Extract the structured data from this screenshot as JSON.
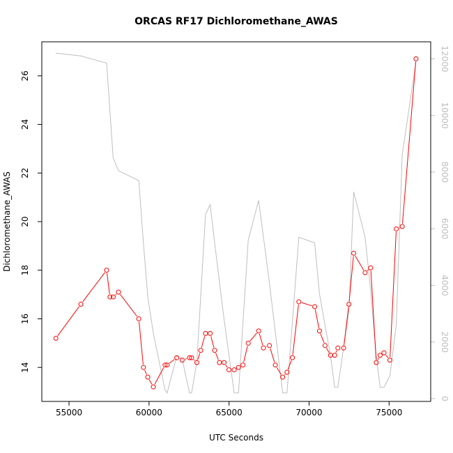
{
  "chart_data": {
    "type": "line",
    "title": "ORCAS RF17 Dichloromethane_AWAS",
    "xlabel": "UTC Seconds",
    "ylabel": "Dichloromethane_AWAS",
    "xlim": [
      53300,
      77600
    ],
    "ylim": [
      12.6,
      27.4
    ],
    "y2lim": [
      -100,
      12600
    ],
    "xticks": [
      55000,
      60000,
      65000,
      70000,
      75000
    ],
    "yticks": [
      14,
      16,
      18,
      20,
      22,
      24,
      26
    ],
    "y2ticks": [
      0,
      2000,
      4000,
      6000,
      8000,
      10000,
      12000
    ],
    "grid": false,
    "series": [
      {
        "role": "primary",
        "color": "#ff0000",
        "marker": "open-circle",
        "x": [
          54180,
          55740,
          57350,
          57560,
          57760,
          58090,
          59360,
          59650,
          59920,
          60270,
          61000,
          61130,
          61730,
          62070,
          62530,
          62660,
          62990,
          63230,
          63530,
          63820,
          64100,
          64400,
          64690,
          64990,
          65320,
          65590,
          65870,
          66200,
          66850,
          67150,
          67520,
          67890,
          68350,
          68620,
          68960,
          69360,
          70350,
          70650,
          71000,
          71340,
          71600,
          71800,
          72160,
          72490,
          72790,
          73500,
          73850,
          74200,
          74440,
          74680,
          75050,
          75450,
          75820,
          76680
        ],
        "values": [
          15.2,
          16.6,
          18.0,
          16.9,
          16.9,
          17.1,
          16.0,
          14.0,
          13.6,
          13.2,
          14.1,
          14.1,
          14.4,
          14.3,
          14.4,
          14.4,
          14.2,
          14.7,
          15.4,
          15.4,
          14.7,
          14.2,
          14.2,
          13.9,
          13.9,
          14.0,
          14.1,
          15.0,
          15.5,
          14.8,
          14.9,
          14.1,
          13.6,
          13.8,
          14.4,
          16.7,
          16.5,
          15.5,
          14.9,
          14.5,
          14.5,
          14.8,
          14.8,
          16.6,
          18.7,
          17.9,
          18.1,
          14.2,
          14.5,
          14.6,
          14.3,
          19.7,
          19.8,
          26.7
        ]
      },
      {
        "role": "secondary",
        "color": "#bebebe",
        "x": [
          54180,
          55740,
          57350,
          57760,
          58090,
          59360,
          59650,
          59920,
          60270,
          61000,
          61130,
          61730,
          62070,
          62530,
          62660,
          62990,
          63530,
          63820,
          64100,
          64690,
          65320,
          65590,
          66200,
          66850,
          67520,
          68350,
          68620,
          69360,
          70350,
          70650,
          71340,
          71600,
          71800,
          72490,
          72790,
          73500,
          73850,
          74200,
          74440,
          74680,
          75050,
          75450,
          75820,
          76680
        ],
        "values": [
          12200,
          12100,
          11850,
          8500,
          8050,
          7700,
          5500,
          3600,
          2300,
          300,
          200,
          1500,
          1400,
          200,
          200,
          1300,
          6500,
          6850,
          5500,
          2800,
          200,
          200,
          5600,
          7000,
          4100,
          200,
          200,
          5700,
          5500,
          3700,
          1500,
          400,
          400,
          3100,
          7300,
          5700,
          3800,
          1500,
          400,
          400,
          800,
          2600,
          8600,
          11900
        ]
      }
    ]
  }
}
